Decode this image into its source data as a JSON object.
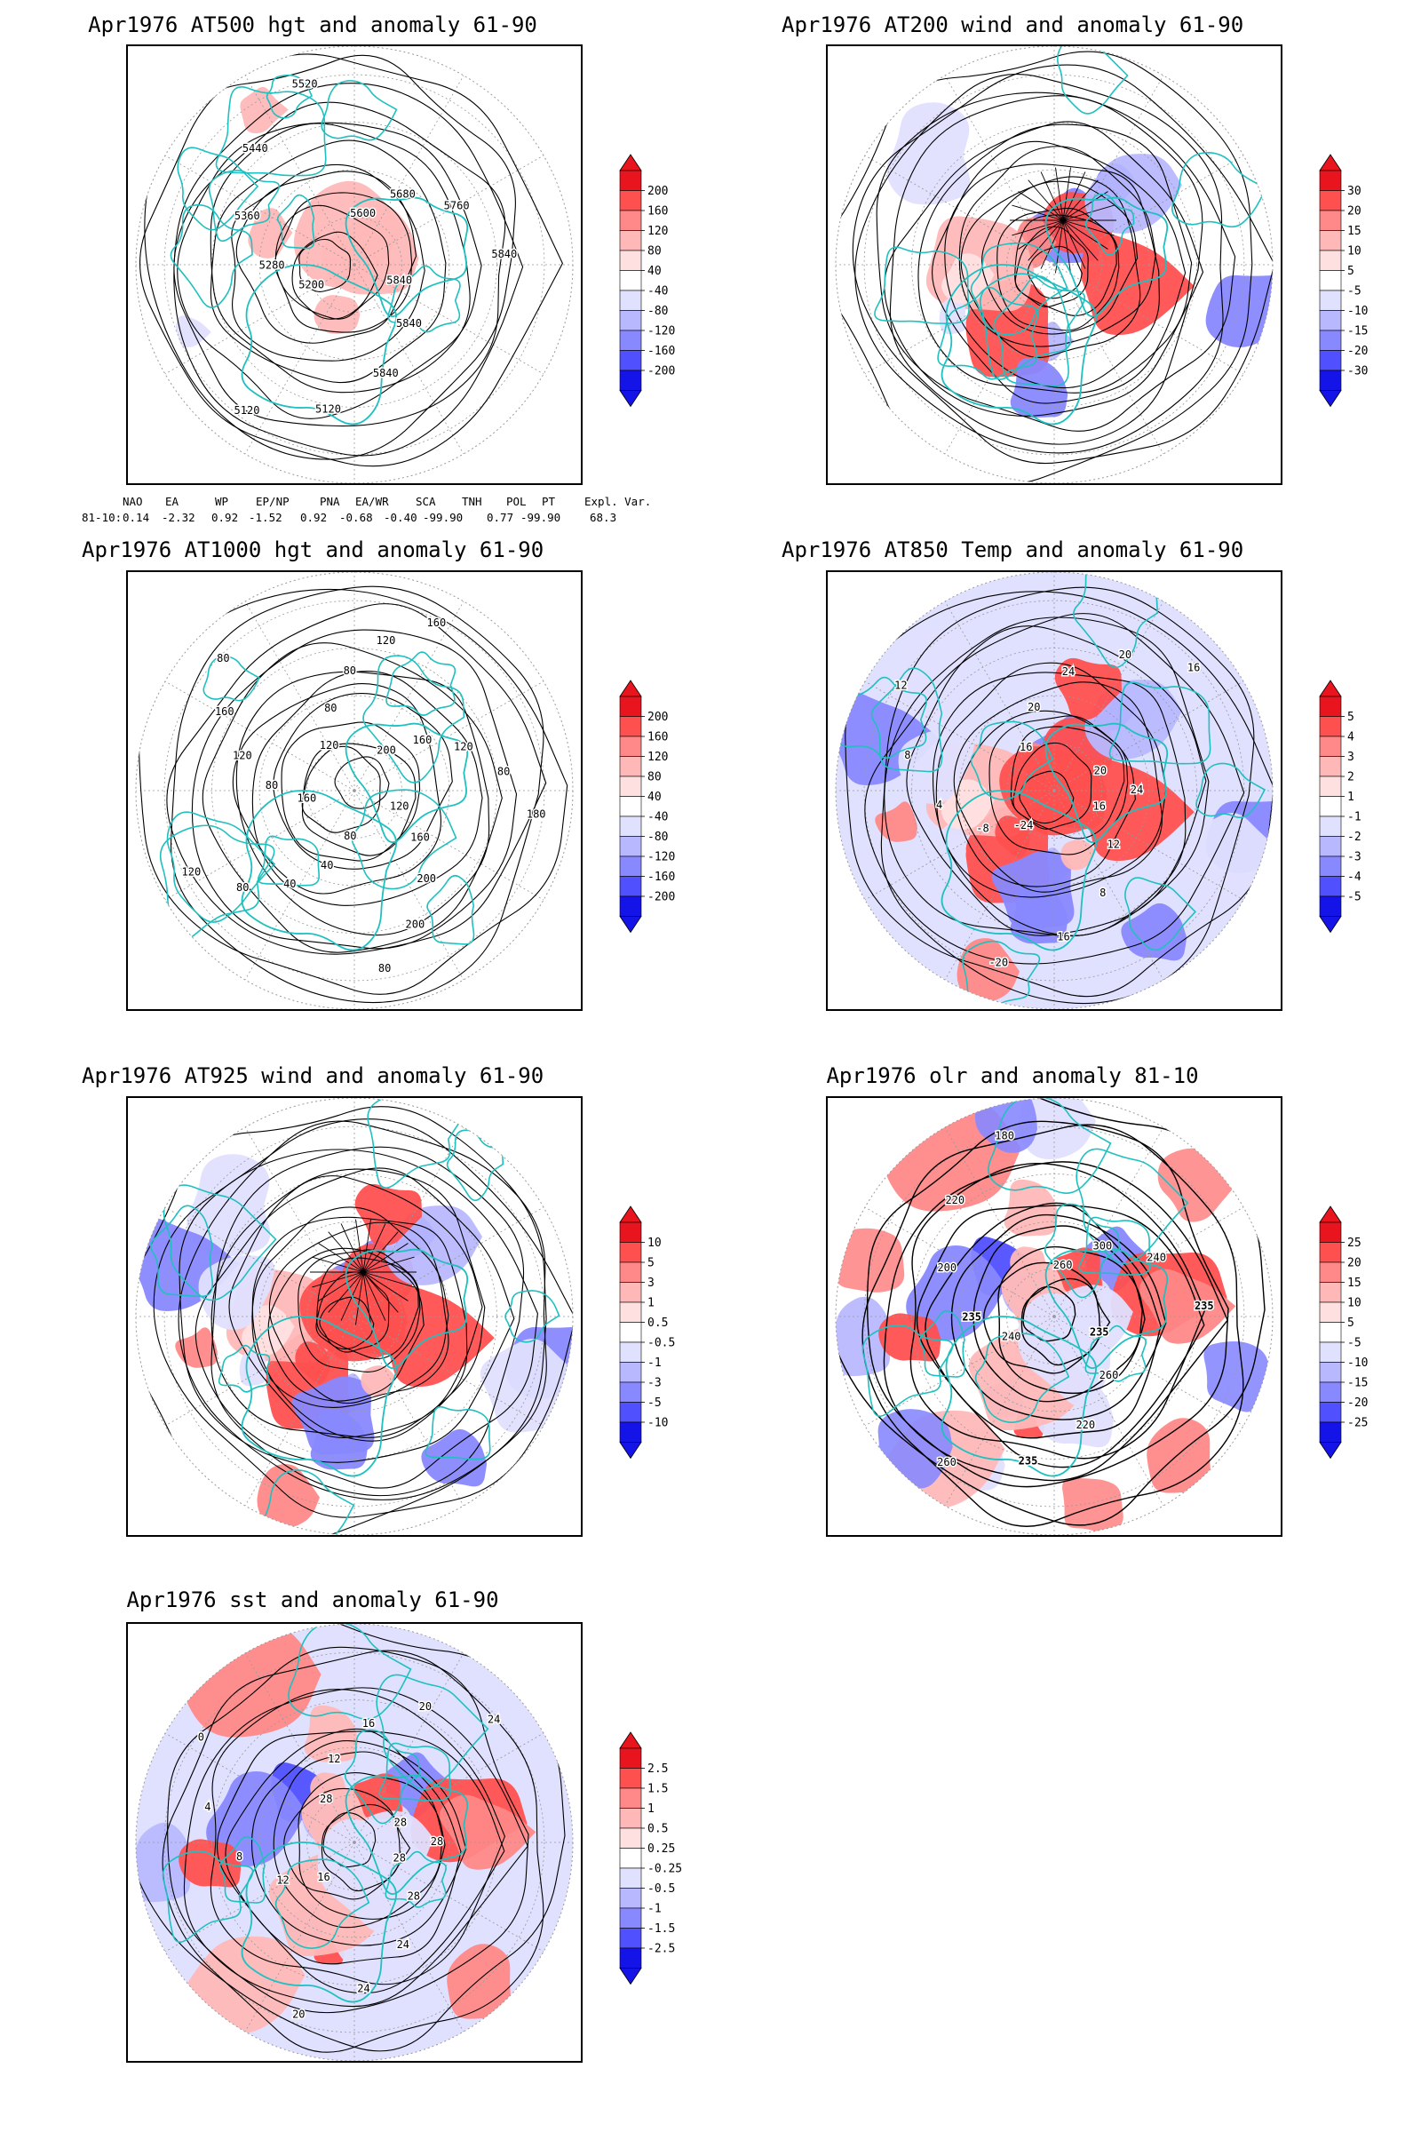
{
  "panels": [
    {
      "id": "hgt500",
      "title": "Apr1976 AT500 hgt and anomaly 61-90",
      "contours": [
        "5840",
        "5840",
        "5840",
        "5120",
        "5120",
        "5200",
        "5280",
        "5360",
        "5440",
        "5520",
        "5600",
        "5680",
        "5760",
        "5840"
      ],
      "colorbar": [
        "200",
        "160",
        "120",
        "80",
        "40",
        "-40",
        "-80",
        "-120",
        "-160",
        "-200"
      ],
      "style": "weak"
    },
    {
      "id": "wind200",
      "title": "Apr1976 AT200 wind and anomaly 61-90",
      "contours": [],
      "colorbar": [
        "30",
        "20",
        "15",
        "10",
        "5",
        "-5",
        "-10",
        "-15",
        "-20",
        "-30"
      ],
      "style": "stream"
    },
    {
      "id": "hgt1000",
      "title": "Apr1976 AT1000 hgt and anomaly 61-90",
      "contours": [
        "120",
        "160",
        "200",
        "200",
        "80",
        "80",
        "40",
        "40",
        "80",
        "120",
        "160",
        "80",
        "120",
        "160",
        "80",
        "120",
        "80",
        "80",
        "120",
        "160",
        "200",
        "160",
        "120",
        "80",
        "180"
      ],
      "colorbar": [
        "200",
        "160",
        "120",
        "80",
        "40",
        "-40",
        "-80",
        "-120",
        "-160",
        "-200"
      ],
      "style": "plain"
    },
    {
      "id": "temp850",
      "title": "Apr1976 AT850 Temp and anomaly 61-90",
      "contours": [
        "16",
        "12",
        "8",
        "16",
        "-20",
        "-24",
        "-8",
        "4",
        "8",
        "12",
        "16",
        "20",
        "24",
        "20",
        "16",
        "20",
        "24"
      ],
      "colorbar": [
        "5",
        "4",
        "3",
        "2",
        "1",
        "-1",
        "-2",
        "-3",
        "-4",
        "-5"
      ],
      "style": "shaded"
    },
    {
      "id": "wind925",
      "title": "Apr1976 AT925 wind and anomaly 61-90",
      "contours": [],
      "colorbar": [
        "10",
        "5",
        "3",
        "1",
        "0.5",
        "-0.5",
        "-1",
        "-3",
        "-5",
        "-10"
      ],
      "style": "stream-shaded"
    },
    {
      "id": "olr",
      "title": "Apr1976 olr and anomaly 81-10",
      "contours": [
        "235",
        "260",
        "220",
        "235",
        "260",
        "240",
        "235",
        "200",
        "220",
        "180",
        "260",
        "300",
        "240",
        "235"
      ],
      "colorbar": [
        "25",
        "20",
        "15",
        "10",
        "5",
        "-5",
        "-10",
        "-15",
        "-20",
        "-25"
      ],
      "style": "olr"
    },
    {
      "id": "sst",
      "title": "Apr1976 sst and anomaly 61-90",
      "contours": [
        "28",
        "28",
        "24",
        "24",
        "20",
        "16",
        "12",
        "8",
        "4",
        "0",
        "28",
        "12",
        "16",
        "20",
        "24",
        "28",
        "28"
      ],
      "colorbar": [
        "2.5",
        "1.5",
        "1",
        "0.5",
        "0.25",
        "-0.25",
        "-0.5",
        "-1",
        "-1.5",
        "-2.5"
      ],
      "style": "sst"
    }
  ],
  "indices": {
    "headers": [
      "NAO",
      "EA",
      "WP",
      "EP/NP",
      "PNA",
      "EA/WR",
      "SCA",
      "TNH",
      "POL",
      "PT",
      "Expl. Var."
    ],
    "row_label": "81-10:",
    "values": [
      "0.14",
      "-2.32",
      "0.92",
      "-1.52",
      "0.92",
      "-0.68",
      "-0.40",
      "-99.90",
      "0.77",
      "-99.90",
      "68.3"
    ]
  },
  "colors": {
    "coast": "#20c0c0",
    "contour": "#000000",
    "grid": "#999999",
    "scale": [
      "#e8141e",
      "#ff5050",
      "#ff8888",
      "#ffb8b8",
      "#ffe0e0",
      "#ffffff",
      "#e0e0ff",
      "#b8b8ff",
      "#8888ff",
      "#5050ff",
      "#1414e8"
    ]
  }
}
